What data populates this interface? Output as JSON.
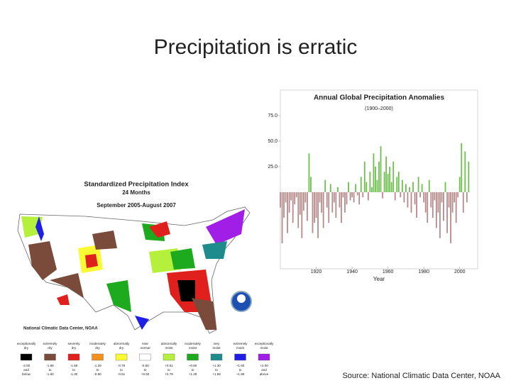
{
  "slide": {
    "title": "Precipitation is erratic",
    "source": "Source: National Climatic Data Center, NOAA"
  },
  "map": {
    "title": "Standardized Precipitation Index",
    "subtitle": "24 Months",
    "period": "September 2005-August 2007",
    "credit": "National Climatic Data Center, NOAA",
    "legend": [
      {
        "name": "exceptionally dry",
        "range": "-2.00 and below",
        "color": "#000000"
      },
      {
        "name": "extremely dry",
        "range": "-1.99 to -1.60",
        "color": "#7a4a3a"
      },
      {
        "name": "severely dry",
        "range": "-1.59 to -1.30",
        "color": "#e0201c"
      },
      {
        "name": "moderately dry",
        "range": "-1.29 to -0.80",
        "color": "#f4901e"
      },
      {
        "name": "abnormally dry",
        "range": "-0.79 to -0.51",
        "color": "#fafa32"
      },
      {
        "name": "near normal",
        "range": "-0.50 to +0.50",
        "color": "#ffffff"
      },
      {
        "name": "abnormally moist",
        "range": "+0.51 to +0.79",
        "color": "#b4f03c"
      },
      {
        "name": "moderately moist",
        "range": "+0.80 to +1.29",
        "color": "#1eaa1e"
      },
      {
        "name": "very moist",
        "range": "+1.30 to +1.59",
        "color": "#1e8c8c"
      },
      {
        "name": "extremely moist",
        "range": "+1.60 to +1.99",
        "color": "#1e1ee6"
      },
      {
        "name": "exceptionally moist",
        "range": "+2.00 and above",
        "color": "#a01ee6"
      }
    ]
  },
  "chart_data": {
    "type": "bar",
    "title": "Annual Global Precipitation Anomalies",
    "subtitle": "(1900–2000)",
    "x_label": "Year",
    "color_positive": "#6cbf4c",
    "color_negative": "#b58a8a",
    "x": [
      1900,
      1901,
      1902,
      1903,
      1904,
      1905,
      1906,
      1907,
      1908,
      1909,
      1910,
      1911,
      1912,
      1913,
      1914,
      1915,
      1916,
      1917,
      1918,
      1919,
      1920,
      1921,
      1922,
      1923,
      1924,
      1925,
      1926,
      1927,
      1928,
      1929,
      1930,
      1931,
      1932,
      1933,
      1934,
      1935,
      1936,
      1937,
      1938,
      1939,
      1940,
      1941,
      1942,
      1943,
      1944,
      1945,
      1946,
      1947,
      1948,
      1949,
      1950,
      1951,
      1952,
      1953,
      1954,
      1955,
      1956,
      1957,
      1958,
      1959,
      1960,
      1961,
      1962,
      1963,
      1964,
      1965,
      1966,
      1967,
      1968,
      1969,
      1970,
      1971,
      1972,
      1973,
      1974,
      1975,
      1976,
      1977,
      1978,
      1979,
      1980,
      1981,
      1982,
      1983,
      1984,
      1985,
      1986,
      1987,
      1988,
      1989,
      1990,
      1991,
      1992,
      1993,
      1994,
      1995,
      1996,
      1997,
      1998,
      1999,
      2000,
      2001,
      2002,
      2003,
      2004,
      2005
    ],
    "values": [
      -15,
      -50,
      -25,
      -10,
      -40,
      -20,
      -8,
      -30,
      -12,
      -5,
      -35,
      -22,
      -45,
      -18,
      -10,
      -28,
      38,
      15,
      -40,
      -30,
      -25,
      -45,
      -10,
      -20,
      -35,
      12,
      -15,
      -30,
      8,
      -20,
      -10,
      -25,
      5,
      -15,
      -30,
      -5,
      -20,
      -12,
      10,
      -8,
      -5,
      -10,
      8,
      -3,
      -12,
      15,
      -5,
      30,
      10,
      -8,
      20,
      5,
      38,
      25,
      12,
      30,
      45,
      -6,
      20,
      35,
      18,
      25,
      10,
      30,
      -8,
      15,
      20,
      -5,
      12,
      -10,
      8,
      -15,
      5,
      -20,
      10,
      -12,
      -25,
      15,
      -5,
      8,
      -10,
      -20,
      -30,
      12,
      -15,
      -25,
      -8,
      -35,
      -20,
      -45,
      -10,
      -28,
      10,
      -40,
      -15,
      -50,
      -20,
      -10,
      -30,
      -5,
      15,
      48,
      -20,
      40,
      -10,
      30
    ],
    "xlim": [
      1900,
      2010
    ],
    "xticks": [
      1920,
      1940,
      1960,
      1980,
      2000
    ],
    "ylim": [
      -75,
      100
    ],
    "yticks": [
      {
        "value": 25,
        "label": "25.0"
      },
      {
        "value": 50,
        "label": "50.0"
      },
      {
        "value": 75,
        "label": "75.0"
      }
    ]
  }
}
